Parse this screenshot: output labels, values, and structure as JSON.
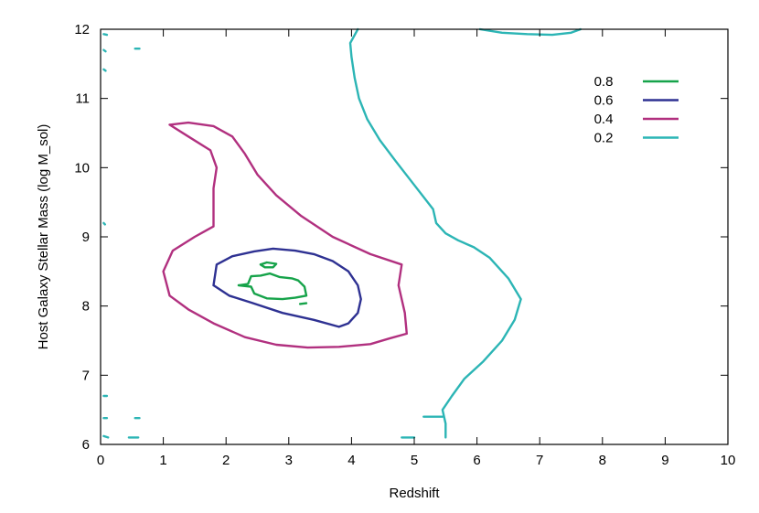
{
  "chart_data": {
    "type": "line",
    "title": "",
    "xlabel": "Redshift",
    "ylabel": "Host Galaxy Stellar Mass (log M_sol)",
    "xlim": [
      0,
      10
    ],
    "ylim": [
      6,
      12
    ],
    "xticks": [
      "0",
      "1",
      "2",
      "3",
      "4",
      "5",
      "6",
      "7",
      "8",
      "9",
      "10"
    ],
    "yticks": [
      "6",
      "7",
      "8",
      "9",
      "10",
      "11",
      "12"
    ],
    "grid": false,
    "legend_position": "top-right",
    "series": [
      {
        "name": "0.8",
        "color": "#16a34a",
        "paths": [
          [
            [
              2.2,
              8.3
            ],
            [
              2.35,
              8.32
            ],
            [
              2.4,
              8.43
            ],
            [
              2.55,
              8.44
            ],
            [
              2.7,
              8.47
            ],
            [
              2.85,
              8.42
            ],
            [
              3.05,
              8.4
            ],
            [
              3.15,
              8.37
            ],
            [
              3.25,
              8.28
            ],
            [
              3.28,
              8.15
            ],
            [
              3.1,
              8.12
            ],
            [
              2.9,
              8.1
            ],
            [
              2.65,
              8.11
            ],
            [
              2.45,
              8.18
            ],
            [
              2.4,
              8.28
            ],
            [
              2.2,
              8.3
            ]
          ],
          [
            [
              2.55,
              8.6
            ],
            [
              2.65,
              8.63
            ],
            [
              2.8,
              8.61
            ],
            [
              2.75,
              8.56
            ],
            [
              2.62,
              8.56
            ],
            [
              2.55,
              8.6
            ]
          ],
          [
            [
              3.18,
              8.03
            ],
            [
              3.28,
              8.04
            ]
          ]
        ]
      },
      {
        "name": "0.6",
        "color": "#2e3192",
        "paths": [
          [
            [
              1.8,
              8.3
            ],
            [
              1.85,
              8.6
            ],
            [
              2.1,
              8.72
            ],
            [
              2.45,
              8.79
            ],
            [
              2.75,
              8.83
            ],
            [
              3.1,
              8.8
            ],
            [
              3.4,
              8.75
            ],
            [
              3.7,
              8.65
            ],
            [
              3.95,
              8.5
            ],
            [
              4.1,
              8.3
            ],
            [
              4.15,
              8.1
            ],
            [
              4.1,
              7.9
            ],
            [
              3.95,
              7.75
            ],
            [
              3.8,
              7.7
            ],
            [
              3.4,
              7.8
            ],
            [
              2.9,
              7.9
            ],
            [
              2.4,
              8.05
            ],
            [
              2.05,
              8.15
            ],
            [
              1.8,
              8.3
            ]
          ]
        ]
      },
      {
        "name": "0.4",
        "color": "#b1307f",
        "paths": [
          [
            [
              1.1,
              10.62
            ],
            [
              1.4,
              10.65
            ],
            [
              1.8,
              10.6
            ],
            [
              2.1,
              10.45
            ],
            [
              2.3,
              10.2
            ],
            [
              2.5,
              9.9
            ],
            [
              2.8,
              9.6
            ],
            [
              3.2,
              9.3
            ],
            [
              3.7,
              9.0
            ],
            [
              4.3,
              8.75
            ],
            [
              4.8,
              8.6
            ],
            [
              4.75,
              8.3
            ],
            [
              4.85,
              7.9
            ],
            [
              4.88,
              7.6
            ],
            [
              4.6,
              7.53
            ],
            [
              4.3,
              7.45
            ],
            [
              3.8,
              7.41
            ],
            [
              3.3,
              7.4
            ],
            [
              2.8,
              7.44
            ],
            [
              2.3,
              7.55
            ],
            [
              1.8,
              7.75
            ],
            [
              1.4,
              7.95
            ],
            [
              1.1,
              8.15
            ],
            [
              1.0,
              8.5
            ],
            [
              1.15,
              8.8
            ],
            [
              1.5,
              9.0
            ],
            [
              1.8,
              9.15
            ],
            [
              1.8,
              9.4
            ],
            [
              1.8,
              9.7
            ],
            [
              1.85,
              10.0
            ],
            [
              1.75,
              10.25
            ],
            [
              1.4,
              10.45
            ],
            [
              1.1,
              10.62
            ]
          ]
        ]
      },
      {
        "name": "0.2",
        "color": "#2cb5b5",
        "paths": [
          [
            [
              4.1,
              12.0
            ],
            [
              3.98,
              11.8
            ],
            [
              4.0,
              11.6
            ],
            [
              4.05,
              11.3
            ],
            [
              4.12,
              11.0
            ],
            [
              4.25,
              10.7
            ],
            [
              4.45,
              10.4
            ],
            [
              4.7,
              10.1
            ],
            [
              5.0,
              9.75
            ],
            [
              5.3,
              9.4
            ],
            [
              5.35,
              9.2
            ],
            [
              5.5,
              9.05
            ],
            [
              5.7,
              8.95
            ],
            [
              5.95,
              8.85
            ],
            [
              6.2,
              8.7
            ],
            [
              6.5,
              8.4
            ],
            [
              6.7,
              8.1
            ],
            [
              6.6,
              7.8
            ],
            [
              6.4,
              7.5
            ],
            [
              6.1,
              7.2
            ],
            [
              5.8,
              6.95
            ],
            [
              5.6,
              6.7
            ],
            [
              5.45,
              6.5
            ],
            [
              5.5,
              6.3
            ],
            [
              5.5,
              6.1
            ]
          ],
          [
            [
              5.15,
              6.4
            ],
            [
              5.45,
              6.4
            ]
          ],
          [
            [
              4.8,
              6.1
            ],
            [
              5.0,
              6.1
            ]
          ],
          [
            [
              6.05,
              12.0
            ],
            [
              6.4,
              11.95
            ],
            [
              6.8,
              11.93
            ],
            [
              7.2,
              11.92
            ],
            [
              7.5,
              11.95
            ],
            [
              7.65,
              12.0
            ]
          ],
          [
            [
              0.05,
              11.93
            ],
            [
              0.1,
              11.92
            ]
          ],
          [
            [
              0.55,
              11.72
            ],
            [
              0.62,
              11.72
            ]
          ],
          [
            [
              0.05,
              11.7
            ],
            [
              0.08,
              11.68
            ]
          ],
          [
            [
              0.05,
              11.42
            ],
            [
              0.08,
              11.4
            ]
          ],
          [
            [
              0.05,
              9.2
            ],
            [
              0.07,
              9.18
            ]
          ],
          [
            [
              0.05,
              6.7
            ],
            [
              0.1,
              6.7
            ]
          ],
          [
            [
              0.05,
              6.38
            ],
            [
              0.1,
              6.38
            ]
          ],
          [
            [
              0.55,
              6.38
            ],
            [
              0.62,
              6.38
            ]
          ],
          [
            [
              0.05,
              6.12
            ],
            [
              0.12,
              6.1
            ]
          ],
          [
            [
              0.45,
              6.1
            ],
            [
              0.6,
              6.1
            ]
          ]
        ]
      }
    ]
  }
}
